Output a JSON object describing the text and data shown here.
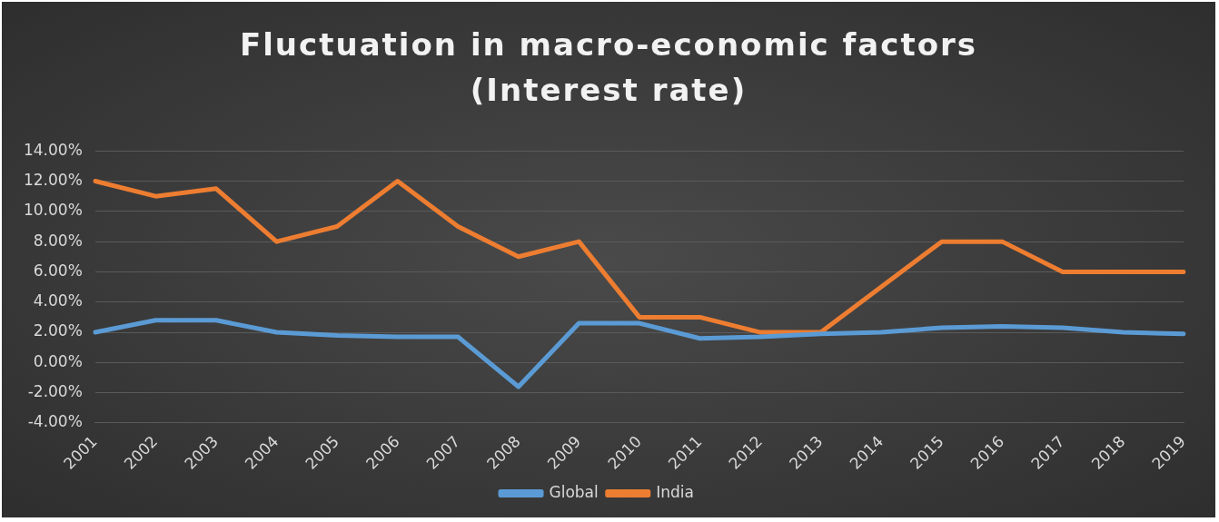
{
  "chart_data": {
    "type": "line",
    "title": "Fluctuation in macro-economic factors (Interest rate)",
    "categories": [
      "2001",
      "2002",
      "2003",
      "2004",
      "2005",
      "2006",
      "2007",
      "2008",
      "2009",
      "2010",
      "2011",
      "2012",
      "2013",
      "2014",
      "2015",
      "2016",
      "2017",
      "2018",
      "2019"
    ],
    "series": [
      {
        "name": "Global",
        "color": "#5b9bd5",
        "values": [
          2.0,
          2.8,
          2.8,
          2.0,
          1.8,
          1.7,
          1.7,
          -1.6,
          2.6,
          2.6,
          1.6,
          1.7,
          1.9,
          2.0,
          2.3,
          2.4,
          2.3,
          2.0,
          1.9
        ]
      },
      {
        "name": "India",
        "color": "#ed7d31",
        "values": [
          12,
          11,
          11.5,
          8,
          9,
          12,
          9,
          7,
          8,
          3,
          3,
          2,
          2,
          5,
          8,
          8,
          6,
          6,
          6
        ]
      }
    ],
    "ylim": [
      -4,
      14
    ],
    "yticks": [
      {
        "value": -4,
        "label": "-4.00%"
      },
      {
        "value": -2,
        "label": "-2.00%"
      },
      {
        "value": 0,
        "label": "0.00%"
      },
      {
        "value": 2,
        "label": "2.00%"
      },
      {
        "value": 4,
        "label": "4.00%"
      },
      {
        "value": 6,
        "label": "6.00%"
      },
      {
        "value": 8,
        "label": "8.00%"
      },
      {
        "value": 10,
        "label": "10.00%"
      },
      {
        "value": 12,
        "label": "12.00%"
      },
      {
        "value": 14,
        "label": "14.00%"
      }
    ],
    "grid": "y",
    "legend": "bottom",
    "marker": "none",
    "line_style": "solid"
  }
}
